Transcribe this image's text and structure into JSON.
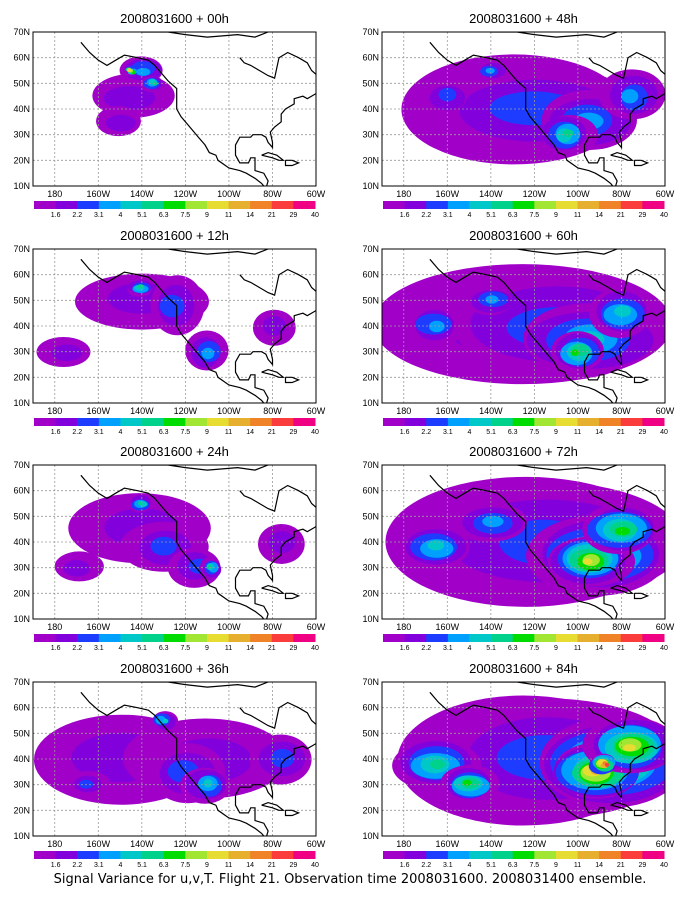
{
  "caption": "Signal Variance for u,v,T. Flight 21. Observation time 2008031600. 2008031400 ensemble.",
  "axes": {
    "lat_labels": [
      "70N",
      "60N",
      "50N",
      "40N",
      "30N",
      "20N",
      "10N"
    ],
    "lon_labels": [
      "180",
      "160W",
      "140W",
      "120W",
      "100W",
      "80W",
      "60W"
    ],
    "lat_values": [
      70,
      60,
      50,
      40,
      30,
      20,
      10
    ],
    "lon_values": [
      180,
      160,
      140,
      120,
      100,
      80,
      60
    ]
  },
  "colorbar": {
    "labels": [
      "1.6",
      "2.2",
      "3.1",
      "4",
      "5.1",
      "6.3",
      "7.5",
      "9",
      "11",
      "14",
      "21",
      "29",
      "40"
    ],
    "colors": [
      "#a000c8",
      "#8200dc",
      "#1e3cff",
      "#00a0ff",
      "#00c8c8",
      "#00d28c",
      "#00dc00",
      "#a0e632",
      "#e6dc32",
      "#e6af2d",
      "#f08228",
      "#fa3c3c",
      "#f00082"
    ]
  },
  "panels": [
    {
      "title": "2008031600 + 00h",
      "intensity": 0
    },
    {
      "title": "2008031600 + 48h",
      "intensity": 4
    },
    {
      "title": "2008031600 + 12h",
      "intensity": 1
    },
    {
      "title": "2008031600 + 60h",
      "intensity": 5
    },
    {
      "title": "2008031600 + 24h",
      "intensity": 2
    },
    {
      "title": "2008031600 + 72h",
      "intensity": 6
    },
    {
      "title": "2008031600 + 36h",
      "intensity": 3
    },
    {
      "title": "2008031600 + 84h",
      "intensity": 7
    }
  ]
}
